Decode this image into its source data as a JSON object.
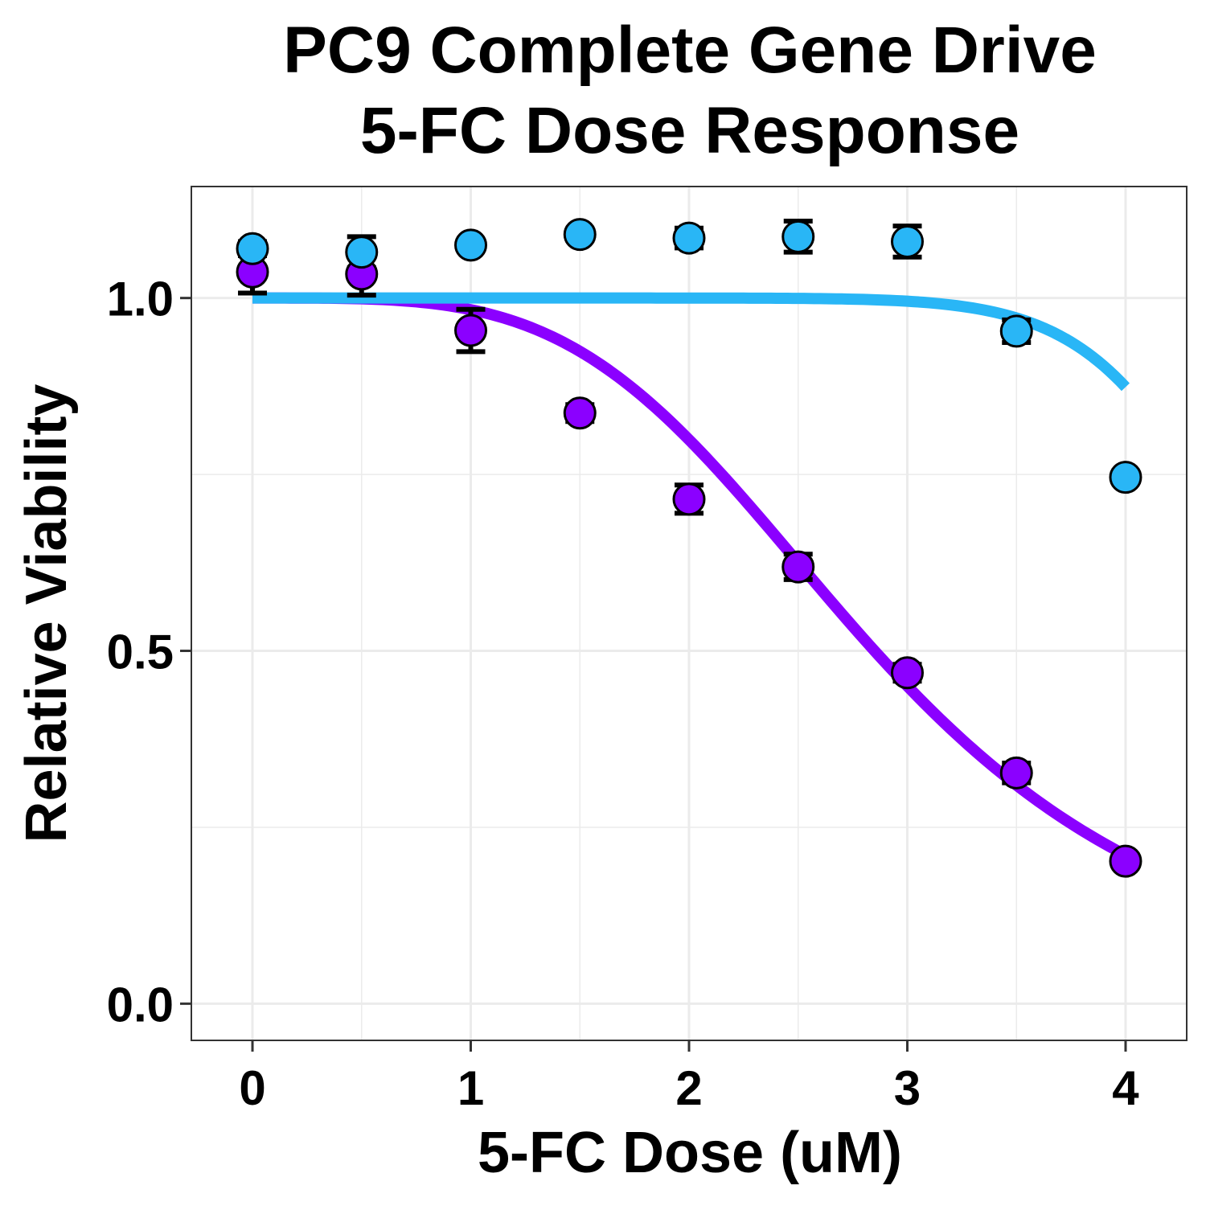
{
  "chart_data": {
    "type": "scatter",
    "title_lines": [
      "PC9 Complete Gene Drive",
      "5-FC Dose Response"
    ],
    "xlabel": "5-FC Dose (uM)",
    "ylabel": "Relative Viability",
    "xlim": [
      -0.28,
      4.28
    ],
    "ylim": [
      -0.052,
      1.158
    ],
    "x_ticks": [
      0,
      1,
      2,
      3,
      4
    ],
    "x_tick_labels": [
      "0",
      "1",
      "2",
      "3",
      "4"
    ],
    "y_ticks": [
      0.0,
      0.5,
      1.0
    ],
    "y_tick_labels": [
      "0.0",
      "0.5",
      "1.0"
    ],
    "grid": true,
    "legend": "none",
    "series": [
      {
        "color": "#8B00FF",
        "points": [
          {
            "x": 0.0,
            "y": 1.037,
            "err": 0.03
          },
          {
            "x": 0.5,
            "y": 1.034,
            "err": 0.03
          },
          {
            "x": 1.0,
            "y": 0.954,
            "err": 0.03
          },
          {
            "x": 1.5,
            "y": 0.837,
            "err": 0.012
          },
          {
            "x": 2.0,
            "y": 0.715,
            "err": 0.02
          },
          {
            "x": 2.5,
            "y": 0.619,
            "err": 0.018
          },
          {
            "x": 3.0,
            "y": 0.469,
            "err": 0.012
          },
          {
            "x": 3.5,
            "y": 0.327,
            "err": 0.014
          },
          {
            "x": 4.0,
            "y": 0.202,
            "err": 0.006
          }
        ],
        "fit": {
          "top": 1.0,
          "bottom": 0.0,
          "ec50": 2.85,
          "hill": 3.9
        }
      },
      {
        "color": "#29B6F6",
        "points": [
          {
            "x": 0.0,
            "y": 1.07,
            "err": 0.01
          },
          {
            "x": 0.5,
            "y": 1.065,
            "err": 0.022
          },
          {
            "x": 1.0,
            "y": 1.075,
            "err": 0.008
          },
          {
            "x": 1.5,
            "y": 1.09,
            "err": 0.008
          },
          {
            "x": 2.0,
            "y": 1.085,
            "err": 0.014
          },
          {
            "x": 2.5,
            "y": 1.087,
            "err": 0.022
          },
          {
            "x": 3.0,
            "y": 1.08,
            "err": 0.022
          },
          {
            "x": 3.5,
            "y": 0.953,
            "err": 0.016
          },
          {
            "x": 4.0,
            "y": 0.746,
            "err": 0.006
          }
        ],
        "fit": {
          "top": 1.0,
          "bottom": 0.0,
          "ec50": 4.7,
          "hill": 12
        }
      }
    ]
  }
}
